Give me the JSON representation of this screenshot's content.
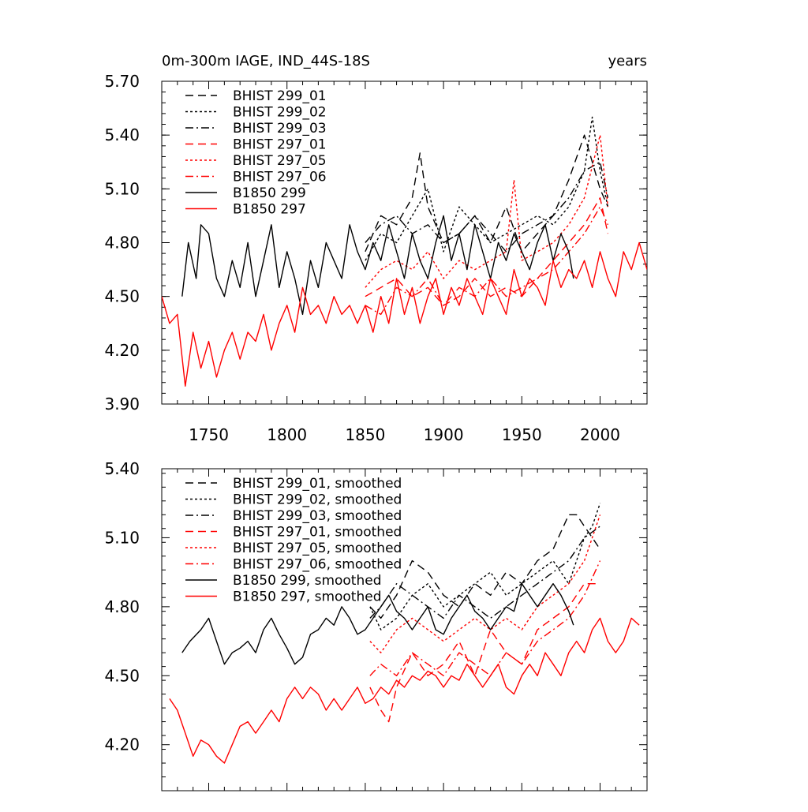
{
  "chart_data": [
    {
      "type": "line",
      "title": "0m-300m IAGE, IND_44S-18S",
      "units_label": "years",
      "xlim": [
        1720,
        2030
      ],
      "ylim": [
        3.9,
        5.7
      ],
      "x_ticks": [
        1750,
        1800,
        1850,
        1900,
        1950,
        2000
      ],
      "x_tick_labels": [
        "1750",
        "1800",
        "1850",
        "1900",
        "1950",
        "2000"
      ],
      "y_ticks": [
        3.9,
        4.2,
        4.5,
        4.8,
        5.1,
        5.4,
        5.7
      ],
      "y_tick_labels": [
        "3.90",
        "4.20",
        "4.50",
        "4.80",
        "5.10",
        "5.40",
        "5.70"
      ],
      "legend_position": "top-left",
      "series": [
        {
          "name": "BHIST 299_01",
          "color": "#000000",
          "dash": "dash",
          "x": [
            1850,
            1860,
            1870,
            1880,
            1885,
            1890,
            1900,
            1910,
            1920,
            1930,
            1940,
            1950,
            1960,
            1970,
            1980,
            1990,
            2000,
            2005
          ],
          "y": [
            4.75,
            4.95,
            4.9,
            5.05,
            5.3,
            5.0,
            4.8,
            4.85,
            4.95,
            4.8,
            5.0,
            4.75,
            4.85,
            4.95,
            5.15,
            5.4,
            5.1,
            5.0
          ]
        },
        {
          "name": "BHIST 299_02",
          "color": "#000000",
          "dash": "dot",
          "x": [
            1850,
            1860,
            1870,
            1880,
            1890,
            1900,
            1910,
            1920,
            1930,
            1940,
            1950,
            1960,
            1970,
            1980,
            1990,
            1995,
            2000,
            2005
          ],
          "y": [
            4.7,
            4.85,
            4.8,
            4.95,
            5.1,
            4.75,
            5.0,
            4.9,
            4.8,
            4.85,
            4.9,
            4.95,
            4.9,
            5.0,
            5.2,
            5.5,
            5.2,
            5.0
          ]
        },
        {
          "name": "BHIST 299_03",
          "color": "#000000",
          "dash": "dashdot",
          "x": [
            1850,
            1860,
            1870,
            1880,
            1890,
            1900,
            1910,
            1920,
            1930,
            1940,
            1950,
            1960,
            1970,
            1980,
            1990,
            2000,
            2005
          ],
          "y": [
            4.8,
            4.9,
            4.95,
            4.85,
            4.9,
            4.8,
            4.85,
            4.95,
            4.85,
            4.75,
            4.85,
            4.9,
            4.95,
            5.05,
            5.2,
            5.25,
            5.05
          ]
        },
        {
          "name": "BHIST 297_01",
          "color": "#ff0000",
          "dash": "dash",
          "x": [
            1850,
            1860,
            1870,
            1880,
            1890,
            1900,
            1910,
            1920,
            1930,
            1940,
            1950,
            1960,
            1970,
            1980,
            1990,
            2000,
            2005
          ],
          "y": [
            4.5,
            4.55,
            4.6,
            4.5,
            4.55,
            4.45,
            4.5,
            4.6,
            4.5,
            4.55,
            4.5,
            4.6,
            4.7,
            4.8,
            4.9,
            5.05,
            4.85
          ]
        },
        {
          "name": "BHIST 297_05",
          "color": "#ff0000",
          "dash": "dot",
          "x": [
            1850,
            1860,
            1870,
            1880,
            1890,
            1900,
            1910,
            1920,
            1930,
            1940,
            1945,
            1950,
            1960,
            1970,
            1980,
            1990,
            2000,
            2005
          ],
          "y": [
            4.55,
            4.65,
            4.7,
            4.65,
            4.75,
            4.6,
            4.7,
            4.65,
            4.7,
            4.75,
            5.15,
            4.7,
            4.75,
            4.8,
            4.9,
            5.05,
            5.4,
            5.0
          ]
        },
        {
          "name": "BHIST 297_06",
          "color": "#ff0000",
          "dash": "dashdot",
          "x": [
            1850,
            1860,
            1870,
            1880,
            1890,
            1900,
            1910,
            1920,
            1930,
            1940,
            1950,
            1960,
            1970,
            1980,
            1990,
            2000,
            2005
          ],
          "y": [
            4.45,
            4.4,
            4.55,
            4.5,
            4.6,
            4.45,
            4.55,
            4.5,
            4.6,
            4.5,
            4.55,
            4.6,
            4.65,
            4.75,
            4.85,
            5.0,
            4.9
          ]
        },
        {
          "name": "B1850 299",
          "color": "#000000",
          "dash": "solid",
          "x": [
            1733,
            1737,
            1742,
            1745,
            1750,
            1755,
            1760,
            1765,
            1770,
            1775,
            1780,
            1785,
            1790,
            1795,
            1800,
            1805,
            1810,
            1815,
            1820,
            1825,
            1830,
            1835,
            1840,
            1845,
            1850,
            1855,
            1860,
            1865,
            1870,
            1875,
            1880,
            1885,
            1890,
            1895,
            1900,
            1905,
            1910,
            1915,
            1920,
            1925,
            1930,
            1935,
            1940,
            1945,
            1950,
            1955,
            1960,
            1965,
            1970,
            1975,
            1980,
            1983
          ],
          "y": [
            4.5,
            4.8,
            4.6,
            4.9,
            4.85,
            4.6,
            4.5,
            4.7,
            4.55,
            4.8,
            4.5,
            4.7,
            4.9,
            4.55,
            4.75,
            4.6,
            4.4,
            4.7,
            4.55,
            4.8,
            4.7,
            4.6,
            4.9,
            4.75,
            4.65,
            4.8,
            4.7,
            4.9,
            4.75,
            4.6,
            4.85,
            4.7,
            4.6,
            4.8,
            4.95,
            4.7,
            4.85,
            4.65,
            4.9,
            4.75,
            4.6,
            4.8,
            4.7,
            4.85,
            4.75,
            4.65,
            4.8,
            4.9,
            4.7,
            4.85,
            4.75,
            4.6
          ]
        },
        {
          "name": "B1850 297",
          "color": "#ff0000",
          "dash": "solid",
          "x": [
            1720,
            1725,
            1730,
            1735,
            1740,
            1745,
            1750,
            1755,
            1760,
            1765,
            1770,
            1775,
            1780,
            1785,
            1790,
            1795,
            1800,
            1805,
            1810,
            1815,
            1820,
            1825,
            1830,
            1835,
            1840,
            1845,
            1850,
            1855,
            1860,
            1865,
            1870,
            1875,
            1880,
            1885,
            1890,
            1895,
            1900,
            1905,
            1910,
            1915,
            1920,
            1925,
            1930,
            1935,
            1940,
            1945,
            1950,
            1955,
            1960,
            1965,
            1970,
            1975,
            1980,
            1985,
            1990,
            1995,
            2000,
            2005,
            2010,
            2015,
            2020,
            2025,
            2030
          ],
          "y": [
            4.5,
            4.35,
            4.4,
            4.0,
            4.3,
            4.1,
            4.25,
            4.05,
            4.2,
            4.3,
            4.15,
            4.3,
            4.25,
            4.4,
            4.2,
            4.35,
            4.45,
            4.3,
            4.55,
            4.4,
            4.45,
            4.35,
            4.5,
            4.4,
            4.45,
            4.35,
            4.45,
            4.3,
            4.5,
            4.35,
            4.6,
            4.4,
            4.55,
            4.35,
            4.5,
            4.6,
            4.4,
            4.55,
            4.45,
            4.6,
            4.5,
            4.4,
            4.6,
            4.5,
            4.4,
            4.65,
            4.5,
            4.6,
            4.55,
            4.45,
            4.7,
            4.55,
            4.65,
            4.6,
            4.7,
            4.55,
            4.75,
            4.6,
            4.5,
            4.75,
            4.65,
            4.8,
            4.65
          ]
        }
      ]
    },
    {
      "type": "line",
      "xlim": [
        1720,
        2030
      ],
      "ylim": [
        4.0,
        5.4
      ],
      "x_ticks": [
        1750,
        1800,
        1850,
        1900,
        1950,
        2000
      ],
      "y_ticks": [
        4.2,
        4.5,
        4.8,
        5.1,
        5.4
      ],
      "y_tick_labels": [
        "4.20",
        "4.50",
        "4.80",
        "5.10",
        "5.40"
      ],
      "legend_position": "top-left",
      "series": [
        {
          "name": "BHIST 299_01, smoothed",
          "color": "#000000",
          "dash": "dash",
          "x": [
            1853,
            1860,
            1870,
            1880,
            1890,
            1900,
            1910,
            1920,
            1930,
            1940,
            1950,
            1960,
            1970,
            1980,
            1985,
            1990,
            1995,
            2000
          ],
          "y": [
            4.8,
            4.75,
            4.85,
            5.0,
            4.95,
            4.85,
            4.8,
            4.9,
            4.85,
            4.95,
            4.9,
            5.0,
            5.05,
            5.2,
            5.2,
            5.15,
            5.1,
            5.05
          ]
        },
        {
          "name": "BHIST 299_02, smoothed",
          "color": "#000000",
          "dash": "dot",
          "x": [
            1853,
            1860,
            1870,
            1880,
            1890,
            1900,
            1910,
            1920,
            1930,
            1940,
            1950,
            1960,
            1970,
            1980,
            1990,
            1995,
            2000
          ],
          "y": [
            4.8,
            4.7,
            4.75,
            4.85,
            4.9,
            4.8,
            4.85,
            4.9,
            4.95,
            4.85,
            4.9,
            4.95,
            5.0,
            4.9,
            5.1,
            5.15,
            5.25
          ]
        },
        {
          "name": "BHIST 299_03, smoothed",
          "color": "#000000",
          "dash": "dashdot",
          "x": [
            1853,
            1860,
            1870,
            1880,
            1890,
            1900,
            1910,
            1920,
            1930,
            1940,
            1950,
            1960,
            1970,
            1980,
            1990,
            2000
          ],
          "y": [
            4.75,
            4.8,
            4.9,
            4.85,
            4.8,
            4.75,
            4.85,
            4.8,
            4.75,
            4.8,
            4.85,
            4.9,
            4.95,
            5.0,
            5.1,
            5.15
          ]
        },
        {
          "name": "BHIST 297_01, smoothed",
          "color": "#ff0000",
          "dash": "dash",
          "x": [
            1853,
            1860,
            1865,
            1870,
            1880,
            1890,
            1900,
            1910,
            1920,
            1930,
            1940,
            1950,
            1960,
            1970,
            1980,
            1990,
            2000
          ],
          "y": [
            4.45,
            4.35,
            4.3,
            4.45,
            4.6,
            4.5,
            4.55,
            4.65,
            4.5,
            4.7,
            4.6,
            4.55,
            4.7,
            4.75,
            4.8,
            4.9,
            4.9
          ]
        },
        {
          "name": "BHIST 297_05, smoothed",
          "color": "#ff0000",
          "dash": "dot",
          "x": [
            1853,
            1860,
            1870,
            1880,
            1890,
            1900,
            1910,
            1920,
            1930,
            1940,
            1950,
            1960,
            1970,
            1980,
            1990,
            2000
          ],
          "y": [
            4.65,
            4.6,
            4.7,
            4.75,
            4.7,
            4.65,
            4.7,
            4.75,
            4.7,
            4.75,
            4.7,
            4.8,
            4.85,
            4.9,
            5.0,
            5.2
          ]
        },
        {
          "name": "BHIST 297_06, smoothed",
          "color": "#ff0000",
          "dash": "dashdot",
          "x": [
            1853,
            1860,
            1870,
            1880,
            1890,
            1900,
            1910,
            1920,
            1930,
            1940,
            1950,
            1960,
            1970,
            1980,
            1990,
            2000
          ],
          "y": [
            4.5,
            4.55,
            4.5,
            4.6,
            4.55,
            4.5,
            4.6,
            4.55,
            4.5,
            4.6,
            4.55,
            4.65,
            4.7,
            4.75,
            4.85,
            5.0
          ]
        },
        {
          "name": "B1850 299, smoothed",
          "color": "#000000",
          "dash": "solid",
          "x": [
            1733,
            1738,
            1745,
            1750,
            1755,
            1760,
            1765,
            1770,
            1775,
            1780,
            1785,
            1790,
            1795,
            1800,
            1805,
            1810,
            1815,
            1820,
            1825,
            1830,
            1835,
            1840,
            1845,
            1850,
            1855,
            1860,
            1865,
            1870,
            1875,
            1880,
            1885,
            1890,
            1895,
            1900,
            1905,
            1910,
            1915,
            1920,
            1925,
            1930,
            1935,
            1940,
            1945,
            1950,
            1955,
            1960,
            1965,
            1970,
            1975,
            1980,
            1983
          ],
          "y": [
            4.6,
            4.65,
            4.7,
            4.75,
            4.65,
            4.55,
            4.6,
            4.62,
            4.65,
            4.6,
            4.7,
            4.75,
            4.68,
            4.62,
            4.55,
            4.58,
            4.68,
            4.7,
            4.75,
            4.72,
            4.8,
            4.75,
            4.68,
            4.7,
            4.75,
            4.8,
            4.85,
            4.78,
            4.75,
            4.7,
            4.75,
            4.8,
            4.7,
            4.68,
            4.75,
            4.8,
            4.85,
            4.78,
            4.75,
            4.7,
            4.75,
            4.8,
            4.78,
            4.9,
            4.85,
            4.8,
            4.85,
            4.9,
            4.85,
            4.78,
            4.72
          ]
        },
        {
          "name": "B1850 297, smoothed",
          "color": "#ff0000",
          "dash": "solid",
          "x": [
            1725,
            1730,
            1735,
            1740,
            1745,
            1750,
            1755,
            1760,
            1765,
            1770,
            1775,
            1780,
            1785,
            1790,
            1795,
            1800,
            1805,
            1810,
            1815,
            1820,
            1825,
            1830,
            1835,
            1840,
            1845,
            1850,
            1855,
            1860,
            1865,
            1870,
            1875,
            1880,
            1885,
            1890,
            1895,
            1900,
            1905,
            1910,
            1915,
            1920,
            1925,
            1930,
            1935,
            1940,
            1945,
            1950,
            1955,
            1960,
            1965,
            1970,
            1975,
            1980,
            1985,
            1990,
            1995,
            2000,
            2005,
            2010,
            2015,
            2020,
            2025
          ],
          "y": [
            4.4,
            4.35,
            4.25,
            4.15,
            4.22,
            4.2,
            4.15,
            4.12,
            4.2,
            4.28,
            4.3,
            4.25,
            4.3,
            4.35,
            4.3,
            4.4,
            4.45,
            4.4,
            4.45,
            4.42,
            4.35,
            4.4,
            4.35,
            4.4,
            4.45,
            4.38,
            4.4,
            4.45,
            4.42,
            4.48,
            4.45,
            4.5,
            4.48,
            4.52,
            4.5,
            4.45,
            4.5,
            4.48,
            4.55,
            4.5,
            4.45,
            4.5,
            4.55,
            4.45,
            4.42,
            4.5,
            4.55,
            4.5,
            4.6,
            4.55,
            4.5,
            4.6,
            4.65,
            4.6,
            4.7,
            4.75,
            4.65,
            4.6,
            4.65,
            4.75,
            4.72
          ]
        }
      ]
    }
  ]
}
